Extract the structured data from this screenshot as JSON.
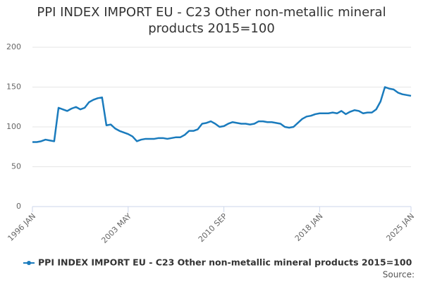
{
  "chart_data": {
    "type": "line",
    "title": "PPI INDEX IMPORT EU - C23 Other non-metallic mineral products 2015=100",
    "source": "Source:",
    "categories": [
      "1996 JAN",
      null,
      null,
      null,
      null,
      null,
      null,
      null,
      null,
      null,
      null,
      null,
      null,
      null,
      null,
      null,
      null,
      null,
      null,
      null,
      null,
      null,
      "2003 MAY",
      null,
      null,
      null,
      null,
      null,
      null,
      null,
      null,
      null,
      null,
      null,
      null,
      null,
      null,
      null,
      null,
      null,
      null,
      null,
      null,
      null,
      "2010 SEP",
      null,
      null,
      null,
      null,
      null,
      null,
      null,
      null,
      null,
      null,
      null,
      null,
      null,
      null,
      null,
      null,
      null,
      null,
      null,
      null,
      null,
      "2018 JAN",
      null,
      null,
      null,
      null,
      null,
      null,
      null,
      null,
      null,
      null,
      null,
      null,
      null,
      null,
      null,
      null,
      null,
      null,
      null,
      null,
      "2025 JAN"
    ],
    "series": [
      {
        "name": "PPI INDEX IMPORT EU - C23 Other non-metallic mineral products 2015=100",
        "color": "#1a7bbd",
        "values": [
          81,
          81,
          82,
          84,
          83,
          82,
          124,
          122,
          120,
          123,
          125,
          122,
          124,
          131,
          134,
          136,
          137,
          102,
          103,
          98,
          95,
          93,
          91,
          88,
          82,
          84,
          85,
          85,
          85,
          86,
          86,
          85,
          86,
          87,
          87,
          90,
          95,
          95,
          97,
          104,
          105,
          107,
          104,
          100,
          101,
          104,
          106,
          105,
          104,
          104,
          103,
          104,
          107,
          107,
          106,
          106,
          105,
          104,
          100,
          99,
          100,
          105,
          110,
          113,
          114,
          116,
          117,
          117,
          117,
          118,
          117,
          120,
          116,
          119,
          121,
          120,
          117,
          118,
          118,
          122,
          132,
          150,
          148,
          147,
          143,
          141,
          140,
          139
        ]
      }
    ],
    "ylim": [
      0,
      200
    ],
    "yticks": [
      0,
      50,
      100,
      150,
      200
    ],
    "grid": true,
    "legend": "bottom"
  }
}
